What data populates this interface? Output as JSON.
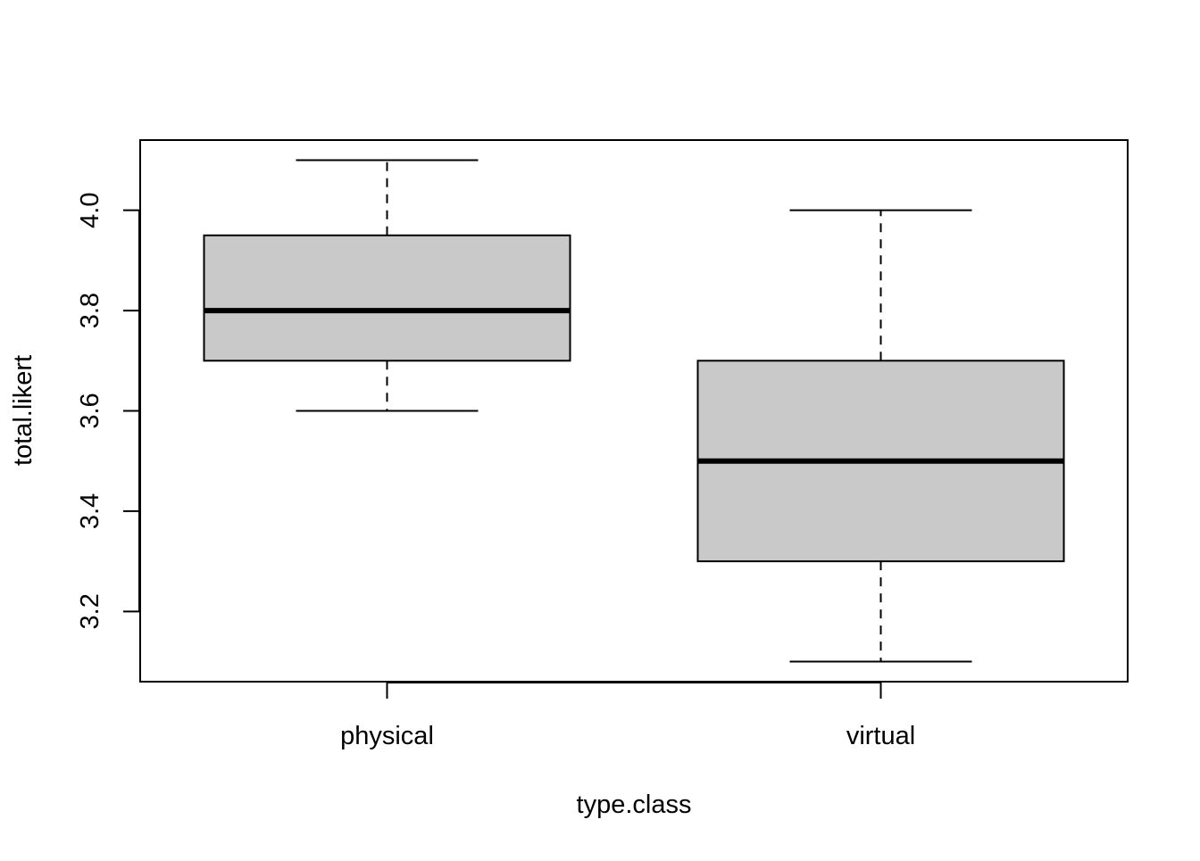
{
  "chart_data": {
    "type": "box",
    "title": "",
    "xlabel": "type.class",
    "ylabel": "total.likert",
    "ylim": [
      3.06,
      4.14
    ],
    "yticks": [
      3.2,
      3.4,
      3.6,
      3.8,
      4.0
    ],
    "ytick_labels": [
      "3.2",
      "3.4",
      "3.6",
      "3.8",
      "4.0"
    ],
    "categories": [
      "physical",
      "virtual"
    ],
    "boxes": [
      {
        "category": "physical",
        "min": 3.6,
        "q1": 3.7,
        "median": 3.8,
        "q3": 3.95,
        "max": 4.1
      },
      {
        "category": "virtual",
        "min": 3.1,
        "q1": 3.3,
        "median": 3.5,
        "q3": 3.7,
        "max": 4.0
      }
    ],
    "grid": false,
    "box_fill": "#c9c9c9",
    "line_color": "#000000"
  }
}
